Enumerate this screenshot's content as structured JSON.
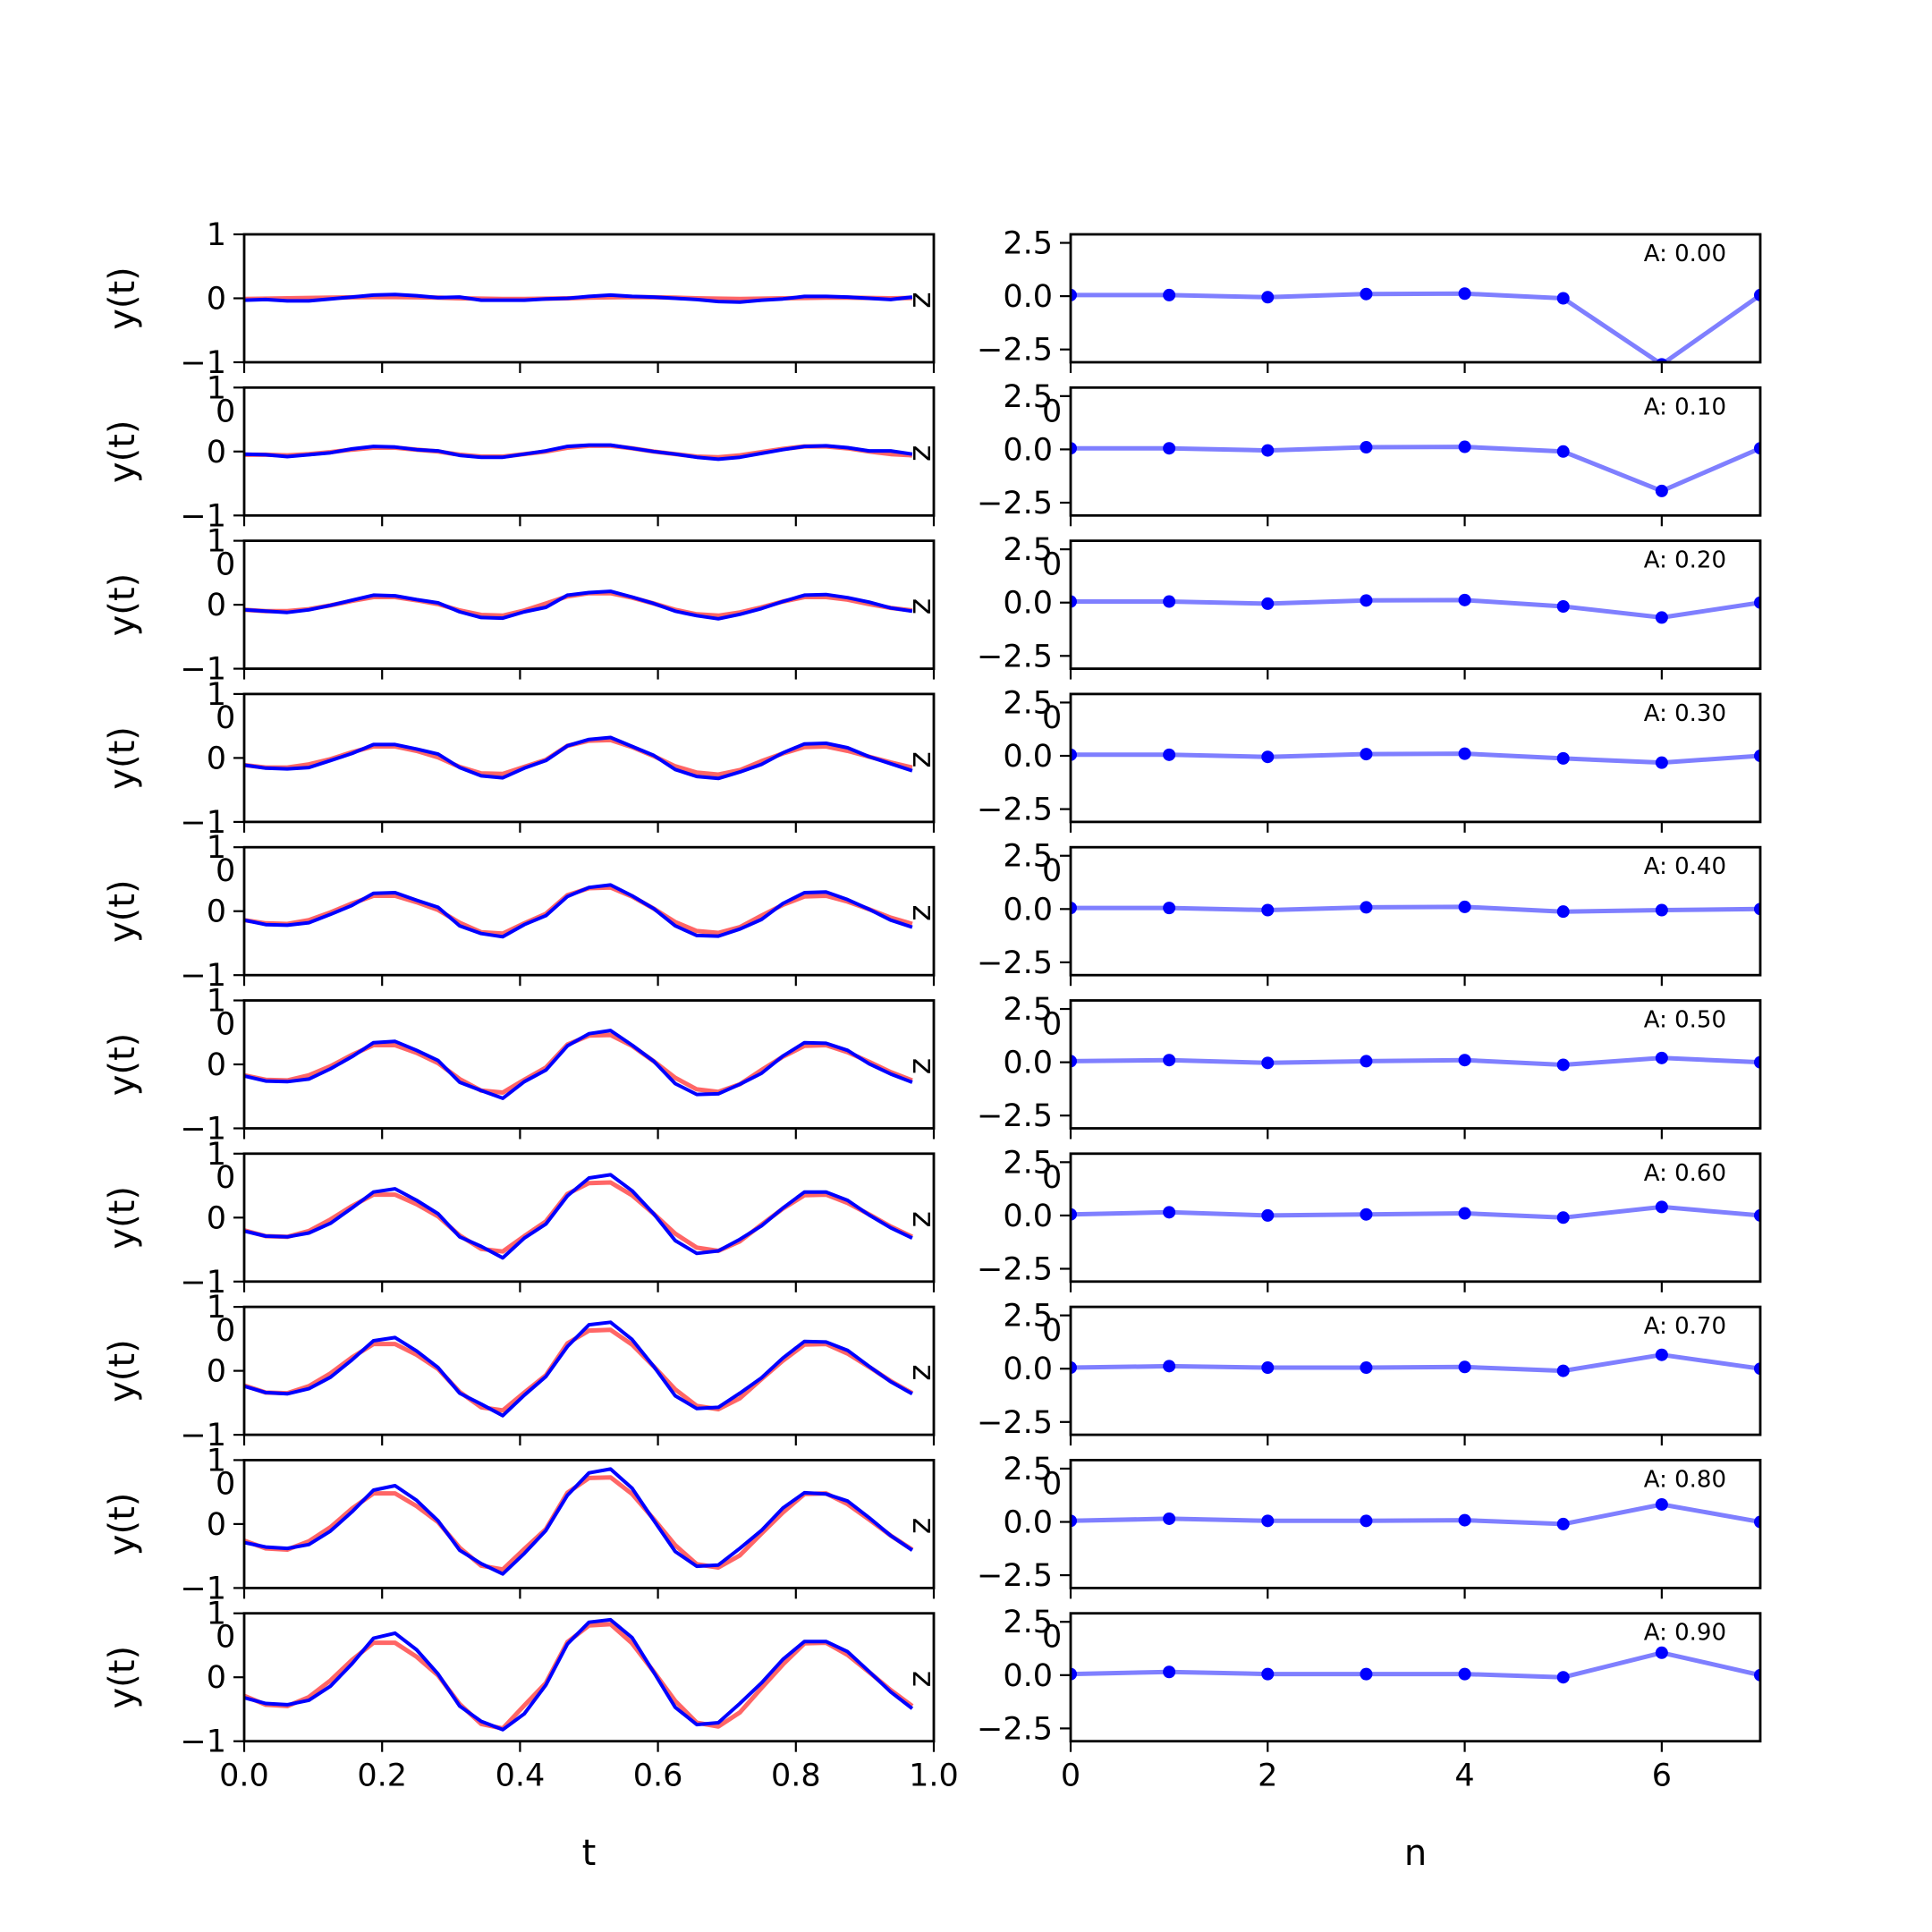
{
  "chart_data": {
    "type": "line",
    "layout": "small-multiples",
    "left": {
      "xlabel": "t",
      "ylabel": "y(t)",
      "side_label": "z",
      "xlim": [
        0,
        1
      ],
      "ylim": [
        -1,
        1
      ],
      "xticks": [
        0.0,
        0.2,
        0.4,
        0.6,
        0.8,
        1.0
      ],
      "xtick_labels": [
        "0.0",
        "0.2",
        "0.4",
        "0.6",
        "0.8",
        "1.0"
      ],
      "yticks": [
        1,
        0,
        -1
      ],
      "ytick_labels": [
        "1",
        "0",
        "−1"
      ],
      "overlap_label": "0",
      "t": [
        0.0,
        0.03125,
        0.0625,
        0.09375,
        0.125,
        0.15625,
        0.1875,
        0.21875,
        0.25,
        0.28125,
        0.3125,
        0.34375,
        0.375,
        0.40625,
        0.4375,
        0.46875,
        0.5,
        0.53125,
        0.5625,
        0.59375,
        0.625,
        0.65625,
        0.6875,
        0.71875,
        0.75,
        0.78125,
        0.8125,
        0.84375,
        0.875,
        0.90625,
        0.9375,
        0.96875
      ],
      "series_colors": [
        "#ff0000",
        "#0000ff"
      ],
      "panels": [
        {
          "red": [
            -0.01,
            -0.005,
            0.0,
            0.005,
            0.01,
            0.015,
            0.02,
            0.02,
            0.015,
            0.01,
            0.0,
            -0.005,
            -0.01,
            -0.01,
            -0.005,
            0.0,
            0.01,
            0.015,
            0.02,
            0.015,
            0.01,
            0.0,
            -0.005,
            -0.01,
            -0.005,
            0.0,
            0.005,
            0.01,
            0.01,
            0.005,
            0.0,
            0.005
          ],
          "blue": [
            -0.03,
            -0.02,
            -0.04,
            -0.04,
            -0.01,
            0.02,
            0.05,
            0.06,
            0.04,
            0.01,
            0.02,
            -0.03,
            -0.03,
            -0.03,
            -0.01,
            0.0,
            0.03,
            0.05,
            0.03,
            0.02,
            0.0,
            -0.02,
            -0.05,
            -0.06,
            -0.03,
            -0.01,
            0.03,
            0.03,
            0.02,
            0.0,
            -0.02,
            0.02
          ]
        },
        {
          "red": [
            -0.05,
            -0.05,
            -0.06,
            -0.04,
            -0.01,
            0.03,
            0.06,
            0.06,
            0.03,
            0.0,
            -0.05,
            -0.08,
            -0.08,
            -0.04,
            0.0,
            0.06,
            0.09,
            0.09,
            0.05,
            0.0,
            -0.04,
            -0.08,
            -0.09,
            -0.06,
            -0.01,
            0.04,
            0.08,
            0.08,
            0.05,
            0.0,
            -0.04,
            -0.06
          ],
          "blue": [
            -0.04,
            -0.05,
            -0.08,
            -0.05,
            -0.02,
            0.04,
            0.08,
            0.07,
            0.03,
            0.01,
            -0.06,
            -0.09,
            -0.09,
            -0.04,
            0.01,
            0.08,
            0.1,
            0.1,
            0.05,
            0.0,
            -0.04,
            -0.09,
            -0.12,
            -0.09,
            -0.03,
            0.03,
            0.08,
            0.09,
            0.06,
            0.01,
            0.01,
            -0.04
          ]
        },
        {
          "red": [
            -0.08,
            -0.1,
            -0.1,
            -0.07,
            -0.01,
            0.06,
            0.12,
            0.12,
            0.07,
            0.01,
            -0.09,
            -0.16,
            -0.17,
            -0.09,
            0.02,
            0.13,
            0.18,
            0.18,
            0.11,
            0.02,
            -0.08,
            -0.15,
            -0.17,
            -0.12,
            -0.04,
            0.05,
            0.12,
            0.12,
            0.08,
            0.01,
            -0.05,
            -0.09
          ],
          "blue": [
            -0.08,
            -0.1,
            -0.12,
            -0.08,
            -0.01,
            0.07,
            0.15,
            0.14,
            0.08,
            0.03,
            -0.11,
            -0.2,
            -0.21,
            -0.11,
            -0.04,
            0.15,
            0.19,
            0.21,
            0.12,
            0.02,
            -0.1,
            -0.17,
            -0.22,
            -0.15,
            -0.06,
            0.05,
            0.15,
            0.16,
            0.11,
            0.04,
            -0.05,
            -0.1
          ]
        },
        {
          "red": [
            -0.11,
            -0.15,
            -0.15,
            -0.1,
            -0.02,
            0.09,
            0.18,
            0.18,
            0.11,
            0.01,
            -0.14,
            -0.24,
            -0.25,
            -0.14,
            -0.03,
            0.19,
            0.27,
            0.28,
            0.17,
            0.03,
            -0.13,
            -0.23,
            -0.26,
            -0.19,
            -0.05,
            0.07,
            0.17,
            0.18,
            0.11,
            0.02,
            -0.07,
            -0.15
          ],
          "blue": [
            -0.11,
            -0.16,
            -0.17,
            -0.15,
            -0.04,
            0.07,
            0.21,
            0.21,
            0.14,
            0.06,
            -0.15,
            -0.28,
            -0.31,
            -0.16,
            -0.04,
            0.19,
            0.29,
            0.32,
            0.18,
            0.04,
            -0.18,
            -0.29,
            -0.32,
            -0.22,
            -0.1,
            0.08,
            0.22,
            0.23,
            0.16,
            0.02,
            -0.09,
            -0.2
          ]
        },
        {
          "red": [
            -0.14,
            -0.19,
            -0.2,
            -0.14,
            -0.02,
            0.12,
            0.24,
            0.24,
            0.14,
            0.02,
            -0.18,
            -0.33,
            -0.35,
            -0.19,
            -0.04,
            0.25,
            0.36,
            0.37,
            0.23,
            0.04,
            -0.17,
            -0.31,
            -0.34,
            -0.25,
            -0.07,
            0.1,
            0.23,
            0.24,
            0.15,
            0.03,
            -0.1,
            -0.2
          ],
          "blue": [
            -0.14,
            -0.21,
            -0.22,
            -0.18,
            -0.05,
            0.09,
            0.28,
            0.29,
            0.17,
            0.06,
            -0.23,
            -0.35,
            -0.4,
            -0.21,
            -0.07,
            0.23,
            0.37,
            0.41,
            0.24,
            0.04,
            -0.23,
            -0.38,
            -0.39,
            -0.28,
            -0.13,
            0.12,
            0.29,
            0.3,
            0.18,
            0.03,
            -0.14,
            -0.25
          ]
        },
        {
          "red": [
            -0.17,
            -0.24,
            -0.25,
            -0.17,
            -0.03,
            0.15,
            0.3,
            0.3,
            0.18,
            0.02,
            -0.23,
            -0.41,
            -0.44,
            -0.24,
            -0.05,
            0.31,
            0.45,
            0.46,
            0.29,
            0.05,
            -0.21,
            -0.39,
            -0.43,
            -0.31,
            -0.09,
            0.12,
            0.29,
            0.3,
            0.19,
            0.04,
            -0.12,
            -0.25
          ],
          "blue": [
            -0.18,
            -0.26,
            -0.27,
            -0.23,
            -0.07,
            0.12,
            0.34,
            0.36,
            0.22,
            0.06,
            -0.28,
            -0.41,
            -0.53,
            -0.27,
            -0.09,
            0.29,
            0.48,
            0.53,
            0.3,
            0.05,
            -0.3,
            -0.47,
            -0.46,
            -0.31,
            -0.14,
            0.13,
            0.34,
            0.33,
            0.22,
            0.01,
            -0.15,
            -0.28
          ]
        },
        {
          "red": [
            -0.2,
            -0.29,
            -0.3,
            -0.21,
            -0.03,
            0.18,
            0.36,
            0.36,
            0.21,
            0.02,
            -0.28,
            -0.49,
            -0.53,
            -0.29,
            -0.06,
            0.37,
            0.54,
            0.55,
            0.35,
            0.06,
            -0.25,
            -0.47,
            -0.52,
            -0.37,
            -0.11,
            0.14,
            0.35,
            0.36,
            0.23,
            0.05,
            -0.14,
            -0.3
          ],
          "blue": [
            -0.21,
            -0.29,
            -0.3,
            -0.24,
            -0.09,
            0.15,
            0.4,
            0.45,
            0.27,
            0.06,
            -0.3,
            -0.45,
            -0.63,
            -0.32,
            -0.1,
            0.34,
            0.62,
            0.67,
            0.42,
            0.06,
            -0.36,
            -0.56,
            -0.52,
            -0.34,
            -0.13,
            0.15,
            0.4,
            0.4,
            0.27,
            0.04,
            -0.16,
            -0.32
          ]
        },
        {
          "red": [
            -0.23,
            -0.34,
            -0.35,
            -0.24,
            -0.04,
            0.21,
            0.42,
            0.42,
            0.25,
            0.03,
            -0.33,
            -0.57,
            -0.62,
            -0.34,
            -0.07,
            0.43,
            0.63,
            0.64,
            0.41,
            0.07,
            -0.29,
            -0.55,
            -0.6,
            -0.43,
            -0.13,
            0.16,
            0.41,
            0.42,
            0.27,
            0.06,
            -0.16,
            -0.35
          ],
          "blue": [
            -0.24,
            -0.34,
            -0.36,
            -0.28,
            -0.1,
            0.17,
            0.47,
            0.52,
            0.31,
            0.05,
            -0.35,
            -0.52,
            -0.7,
            -0.38,
            -0.09,
            0.38,
            0.72,
            0.76,
            0.49,
            0.07,
            -0.39,
            -0.59,
            -0.57,
            -0.35,
            -0.11,
            0.2,
            0.46,
            0.45,
            0.32,
            0.07,
            -0.17,
            -0.36
          ]
        },
        {
          "red": [
            -0.26,
            -0.38,
            -0.4,
            -0.27,
            -0.05,
            0.24,
            0.48,
            0.48,
            0.28,
            0.03,
            -0.37,
            -0.65,
            -0.71,
            -0.39,
            -0.08,
            0.49,
            0.72,
            0.73,
            0.47,
            0.08,
            -0.33,
            -0.63,
            -0.68,
            -0.49,
            -0.15,
            0.18,
            0.47,
            0.48,
            0.31,
            0.07,
            -0.18,
            -0.4
          ],
          "blue": [
            -0.29,
            -0.36,
            -0.38,
            -0.32,
            -0.11,
            0.19,
            0.53,
            0.6,
            0.37,
            0.05,
            -0.41,
            -0.62,
            -0.78,
            -0.46,
            -0.1,
            0.45,
            0.8,
            0.86,
            0.56,
            0.06,
            -0.43,
            -0.66,
            -0.64,
            -0.38,
            -0.1,
            0.25,
            0.49,
            0.47,
            0.36,
            0.1,
            -0.18,
            -0.41
          ]
        },
        {
          "red": [
            -0.29,
            -0.43,
            -0.45,
            -0.31,
            -0.05,
            0.27,
            0.54,
            0.54,
            0.32,
            0.03,
            -0.42,
            -0.73,
            -0.8,
            -0.44,
            -0.09,
            0.55,
            0.81,
            0.83,
            0.53,
            0.09,
            -0.37,
            -0.71,
            -0.77,
            -0.55,
            -0.17,
            0.2,
            0.53,
            0.54,
            0.35,
            0.08,
            -0.2,
            -0.45
          ],
          "blue": [
            -0.32,
            -0.41,
            -0.43,
            -0.36,
            -0.14,
            0.21,
            0.61,
            0.69,
            0.43,
            0.05,
            -0.45,
            -0.69,
            -0.82,
            -0.57,
            -0.12,
            0.52,
            0.86,
            0.9,
            0.62,
            0.08,
            -0.47,
            -0.74,
            -0.71,
            -0.41,
            -0.09,
            0.28,
            0.56,
            0.56,
            0.4,
            0.09,
            -0.23,
            -0.49
          ]
        }
      ]
    },
    "right": {
      "xlabel": "n",
      "xlim": [
        0,
        7
      ],
      "ylim": [
        -3.1,
        2.9
      ],
      "xticks": [
        0,
        2,
        4,
        6
      ],
      "xtick_labels": [
        "0",
        "2",
        "4",
        "6"
      ],
      "yticks": [
        2.5,
        0.0,
        -2.5
      ],
      "ytick_labels": [
        "2.5",
        "0.0",
        "−2.5"
      ],
      "overlap_label": "0",
      "line_color": "#0000ff",
      "n": [
        0,
        1,
        2,
        3,
        4,
        5,
        6,
        7
      ],
      "panels": [
        {
          "annotation": "A: 0.00",
          "values": [
            0.05,
            0.05,
            -0.05,
            0.1,
            0.12,
            -0.1,
            -3.2,
            0.05
          ]
        },
        {
          "annotation": "A: 0.10",
          "values": [
            0.05,
            0.05,
            -0.05,
            0.1,
            0.12,
            -0.1,
            -1.95,
            0.05
          ]
        },
        {
          "annotation": "A: 0.20",
          "values": [
            0.05,
            0.05,
            -0.05,
            0.1,
            0.12,
            -0.18,
            -0.7,
            0.0
          ]
        },
        {
          "annotation": "A: 0.30",
          "values": [
            0.05,
            0.05,
            -0.05,
            0.08,
            0.1,
            -0.12,
            -0.32,
            0.0
          ]
        },
        {
          "annotation": "A: 0.40",
          "values": [
            0.05,
            0.05,
            -0.05,
            0.08,
            0.1,
            -0.12,
            -0.05,
            0.0
          ]
        },
        {
          "annotation": "A: 0.50",
          "values": [
            0.05,
            0.1,
            -0.03,
            0.05,
            0.1,
            -0.12,
            0.2,
            0.0
          ]
        },
        {
          "annotation": "A: 0.60",
          "values": [
            0.05,
            0.15,
            0.0,
            0.05,
            0.1,
            -0.1,
            0.4,
            0.0
          ]
        },
        {
          "annotation": "A: 0.70",
          "values": [
            0.05,
            0.12,
            0.05,
            0.05,
            0.08,
            -0.1,
            0.65,
            0.0
          ]
        },
        {
          "annotation": "A: 0.80",
          "values": [
            0.05,
            0.15,
            0.05,
            0.05,
            0.08,
            -0.1,
            0.82,
            0.0
          ]
        },
        {
          "annotation": "A: 0.90",
          "values": [
            0.05,
            0.15,
            0.05,
            0.05,
            0.05,
            -0.1,
            1.05,
            0.0
          ]
        }
      ]
    }
  }
}
